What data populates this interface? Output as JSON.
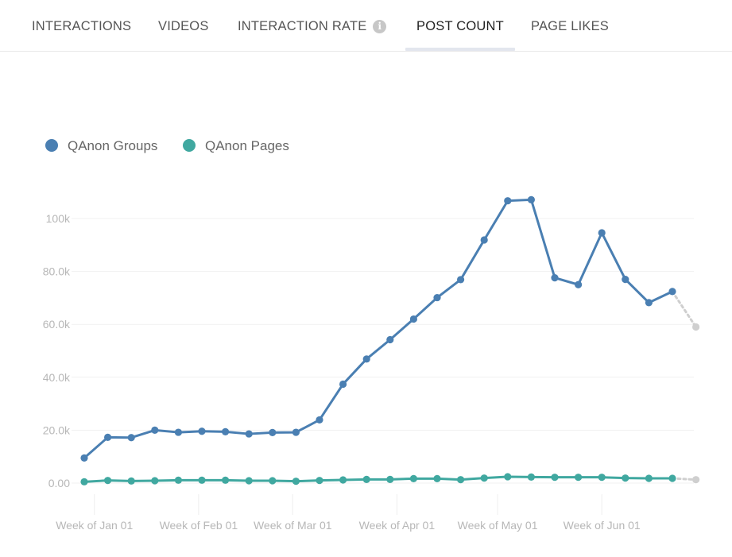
{
  "tabs": [
    {
      "label": "INTERACTIONS",
      "active": false
    },
    {
      "label": "VIDEOS",
      "active": false
    },
    {
      "label": "INTERACTION RATE",
      "active": false,
      "icon": "info-icon"
    },
    {
      "label": "POST COUNT",
      "active": true
    },
    {
      "label": "PAGE LIKES",
      "active": false
    }
  ],
  "chart_data": {
    "type": "line",
    "title": "",
    "xlabel": "",
    "ylabel": "",
    "ylim": [
      0,
      110000
    ],
    "y_ticks": [
      "0.00",
      "20.0k",
      "40.0k",
      "60.0k",
      "80.0k",
      "100k"
    ],
    "y_tick_values": [
      0,
      20000,
      40000,
      60000,
      80000,
      100000
    ],
    "x_tick_labels": [
      "Week of Jan 01",
      "Week of Feb 01",
      "Week of Mar 01",
      "Week of Apr 01",
      "Week of May 01",
      "Week of Jun 01"
    ],
    "x_tick_week_index": [
      0.43,
      4.86,
      8.86,
      13.29,
      17.57,
      22.0
    ],
    "weeks": 27,
    "grid": true,
    "legend_position": "top-left",
    "last_point_partial": true,
    "series": [
      {
        "name": "QAnon Groups",
        "color": "#4a7fb2",
        "values": [
          9500,
          17300,
          17200,
          20000,
          19200,
          19600,
          19400,
          18600,
          19100,
          19200,
          23900,
          37400,
          46900,
          54200,
          62000,
          70100,
          76900,
          91900,
          106700,
          107100,
          77600,
          75000,
          94600,
          77000,
          68200,
          72400,
          59000
        ]
      },
      {
        "name": "QAnon Pages",
        "color": "#40a8a0",
        "values": [
          500,
          1000,
          800,
          900,
          1100,
          1100,
          1100,
          900,
          900,
          700,
          1000,
          1200,
          1400,
          1400,
          1700,
          1700,
          1300,
          1900,
          2400,
          2300,
          2200,
          2200,
          2200,
          1900,
          1800,
          1800,
          1300
        ]
      }
    ],
    "partial_color": "#cfcfcf"
  }
}
